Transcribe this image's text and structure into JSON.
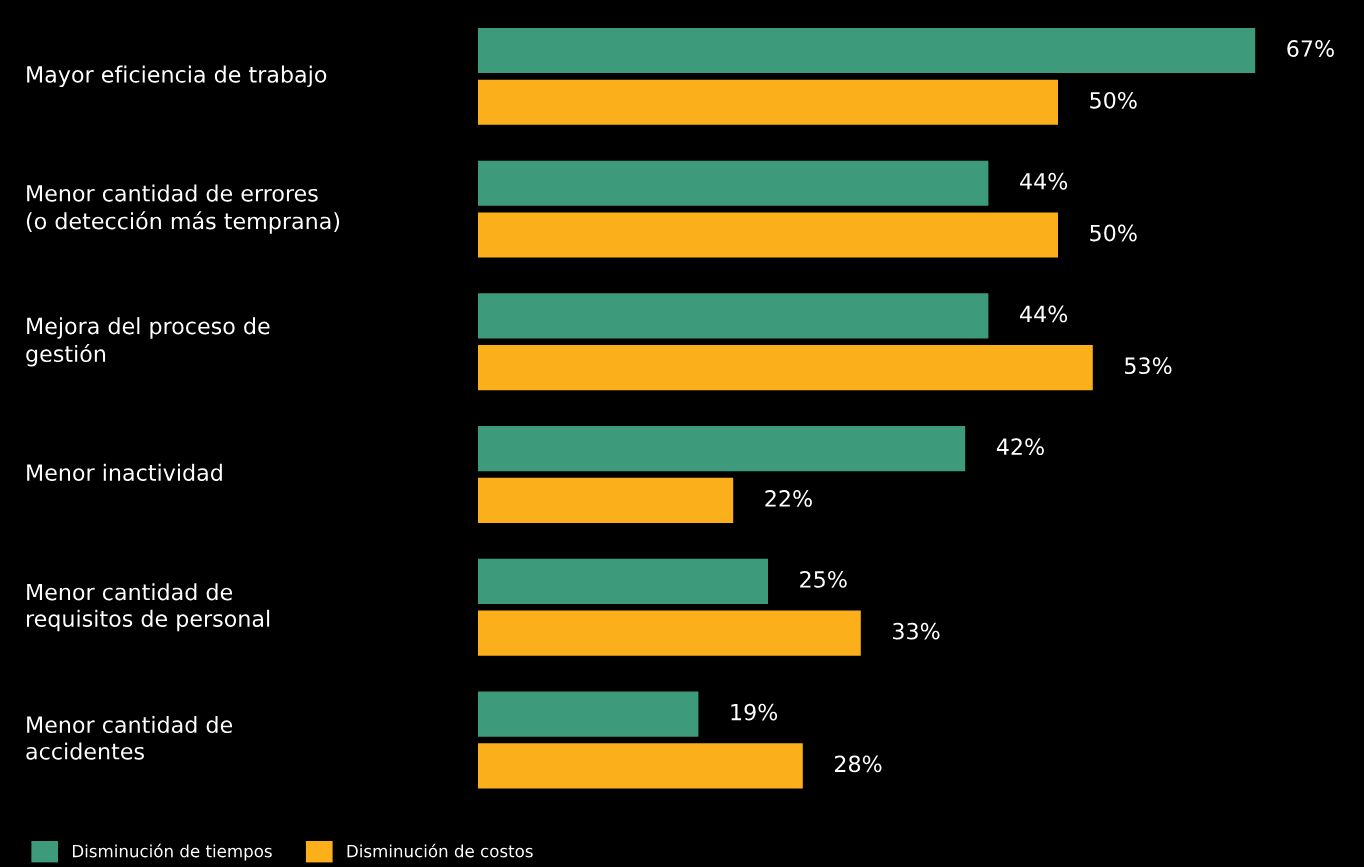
{
  "chart_data": {
    "type": "bar",
    "orientation": "horizontal",
    "legend": "bottom left",
    "tick_labels": "y",
    "categories": [
      "Mayor eficiencia de trabajo",
      "Menor cantidad de errores\n(o detección más temprana)",
      "Mejora del proceso de\ngestión",
      "Menor inactividad",
      "Menor cantidad de\nrequisitos de personal",
      "Menor cantidad de\naccidentes"
    ],
    "series": [
      {
        "name": "Disminución de tiempos",
        "color": "#3d9a7b",
        "values": [
          67,
          44,
          44,
          42,
          25,
          19
        ],
        "value_labels": [
          "67%",
          "44%",
          "44%",
          "42%",
          "25%",
          "19%"
        ]
      },
      {
        "name": "Disminución de costos",
        "color": "#fbb01b",
        "values": [
          50,
          50,
          53,
          22,
          33,
          28
        ],
        "value_labels": [
          "50%",
          "50%",
          "53%",
          "22%",
          "33%",
          "28%"
        ]
      }
    ]
  }
}
